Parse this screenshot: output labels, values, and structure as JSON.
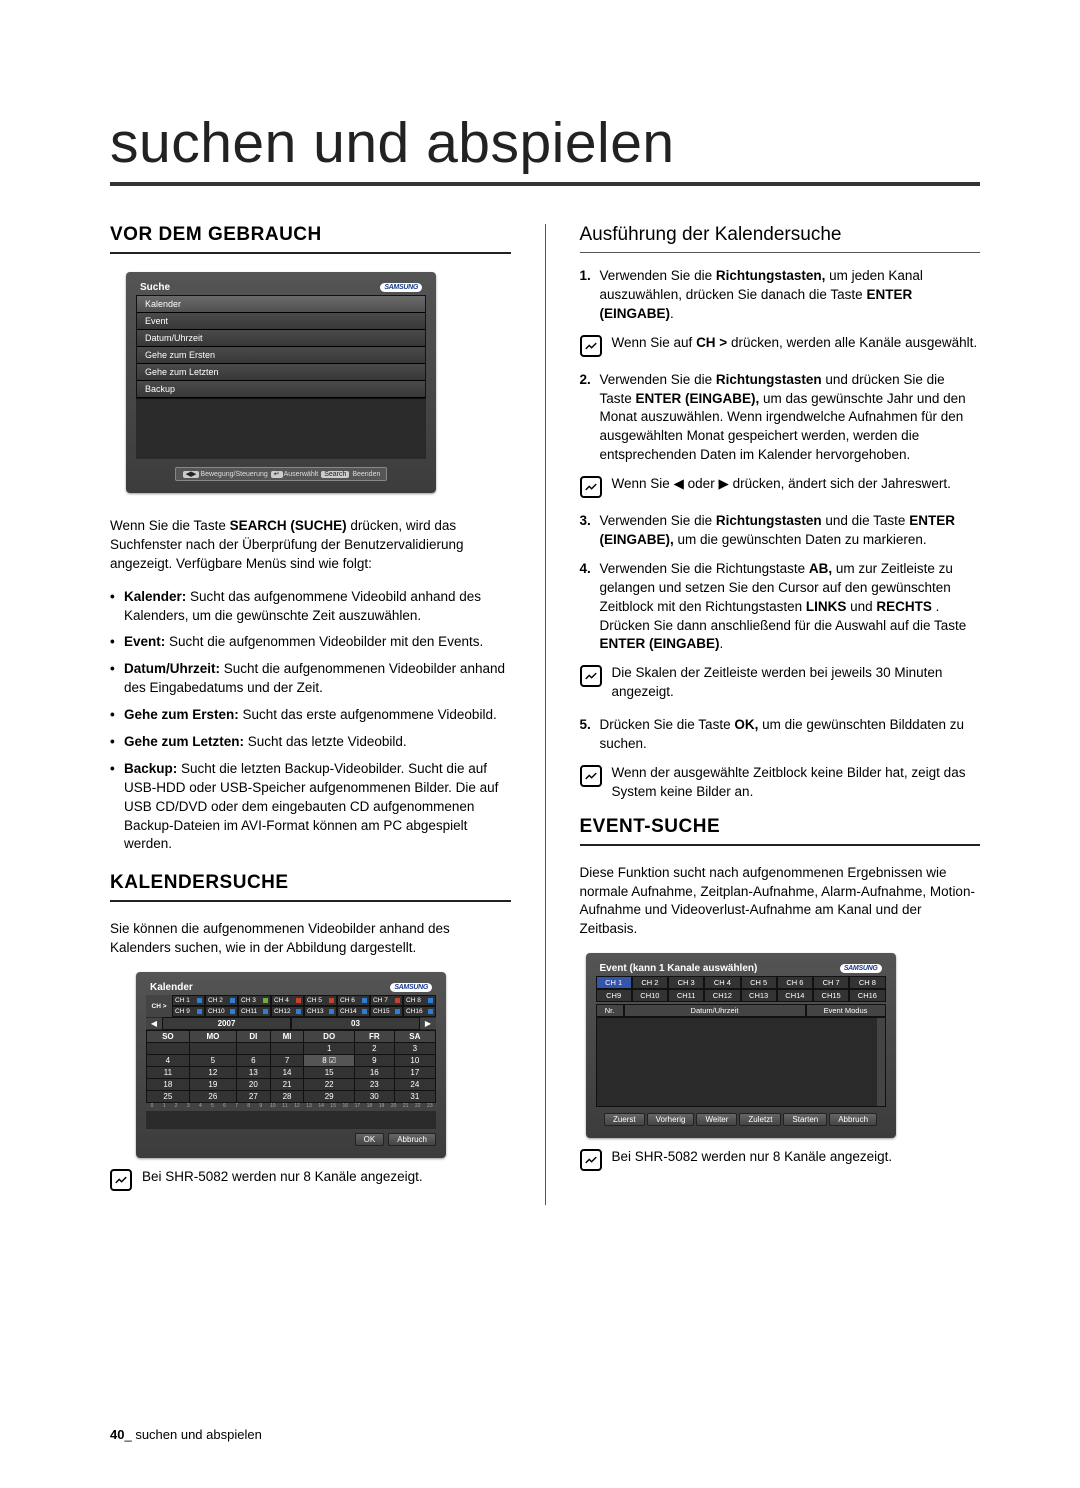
{
  "page": {
    "title": "suchen und abspielen",
    "footer_page": "40",
    "footer_text": "suchen und abspielen"
  },
  "colors": {
    "text": "#000000",
    "rule": "#333333",
    "mock_bg_top": "#545454",
    "mock_bg_bottom": "#3c3c3c",
    "samsung_blue": "#1a3b8b",
    "highlight_cell": "#555555"
  },
  "left": {
    "h1": "VOR DEM GEBRAUCH",
    "mock_menu": {
      "title": "Suche",
      "brand": "SAMSUNG",
      "items": [
        "Kalender",
        "Event",
        "Datum/Uhrzeit",
        "Gehe zum Ersten",
        "Gehe zum Letzten",
        "Backup"
      ],
      "footer": [
        "Bewegung/Steuerung",
        "Auserwählt",
        "Search",
        "Beenden"
      ]
    },
    "intro": "Wenn Sie die Taste SEARCH (SUCHE) drücken, wird das Suchfenster nach der Überprüfung der Benutzervalidierung angezeigt. Verfügbare Menüs sind wie folgt:",
    "bullets": [
      {
        "b": "Kalender:",
        "t": " Sucht das aufgenommene Videobild anhand des Kalenders, um die gewünschte Zeit auszuwählen."
      },
      {
        "b": "Event:",
        "t": " Sucht die aufgenommen Videobilder mit den Events."
      },
      {
        "b": "Datum/Uhrzeit:",
        "t": " Sucht die aufgenommenen Videobilder anhand des Eingabedatums und der Zeit."
      },
      {
        "b": "Gehe zum Ersten:",
        "t": " Sucht das erste aufgenommene Videobild."
      },
      {
        "b": "Gehe zum Letzten:",
        "t": " Sucht das letzte Videobild."
      },
      {
        "b": "Backup:",
        "t": " Sucht die letzten Backup-Videobilder. Sucht die auf USB-HDD oder USB-Speicher aufgenommenen Bilder. Die auf USB CD/DVD oder dem eingebauten CD aufgenommenen Backup-Dateien im AVI-Format können am PC abgespielt werden."
      }
    ],
    "h2": "KALENDERSUCHE",
    "h2_intro": "Sie können die aufgenommenen Videobilder anhand des Kalenders suchen, wie in der Abbildung dargestellt.",
    "calendar_mock": {
      "title": "Kalender",
      "brand": "SAMSUNG",
      "ch_label": "CH >",
      "channels_row1": [
        "CH 1",
        "CH 2",
        "CH 3",
        "CH 4",
        "CH 5",
        "CH 6",
        "CH 7",
        "CH 8"
      ],
      "channels_row2": [
        "CH 9",
        "CH10",
        "CH11",
        "CH12",
        "CH13",
        "CH14",
        "CH15",
        "CH16"
      ],
      "channel_colors": [
        "#2e7dd6",
        "#2e7dd6",
        "#6fae3b",
        "#c7412a",
        "#c7412a",
        "#2e7dd6",
        "#c7412a",
        "#2e7dd6",
        "#2e7dd6",
        "#2e7dd6",
        "#2e7dd6",
        "#2e7dd6",
        "#2e7dd6",
        "#2e7dd6",
        "#2e7dd6",
        "#2e7dd6"
      ],
      "year": "2007",
      "month": "03",
      "weekdays": [
        "SO",
        "MO",
        "DI",
        "MI",
        "DO",
        "FR",
        "SA"
      ],
      "grid": [
        [
          "",
          "",
          "",
          "",
          "1",
          "2",
          "3"
        ],
        [
          "4",
          "5",
          "6",
          "7",
          "8",
          "9",
          "10"
        ],
        [
          "11",
          "12",
          "13",
          "14",
          "15",
          "16",
          "17"
        ],
        [
          "18",
          "19",
          "20",
          "21",
          "22",
          "23",
          "24"
        ],
        [
          "25",
          "26",
          "27",
          "28",
          "29",
          "30",
          "31"
        ]
      ],
      "highlighted_day": "8",
      "timeline_ticks": [
        "0",
        "1",
        "2",
        "3",
        "4",
        "5",
        "6",
        "7",
        "8",
        "9",
        "10",
        "11",
        "12",
        "13",
        "14",
        "15",
        "16",
        "17",
        "18",
        "19",
        "20",
        "21",
        "22",
        "23"
      ],
      "buttons": [
        "OK",
        "Abbruch"
      ]
    },
    "note8": "Bei SHR-5082 werden nur 8 Kanäle angezeigt."
  },
  "right": {
    "sub1": "Ausführung der Kalendersuche",
    "steps": [
      {
        "n": "1.",
        "t": "Verwenden Sie die Richtungstasten, um jeden Kanal auszuwählen, drücken Sie danach die Taste ENTER (EINGABE)."
      },
      {
        "n": "2.",
        "t": "Verwenden Sie die Richtungstasten und drücken Sie die Taste ENTER (EINGABE), um das gewünschte Jahr und den Monat auszuwählen. Wenn irgendwelche Aufnahmen für den ausgewählten Monat gespeichert werden, werden die entsprechenden Daten im Kalender hervorgehoben."
      },
      {
        "n": "3.",
        "t": "Verwenden Sie die Richtungstasten und die Taste ENTER (EINGABE), um die gewünschten Daten zu markieren."
      },
      {
        "n": "4.",
        "t": "Verwenden Sie die Richtungstaste AB, um zur Zeitleiste zu gelangen und setzen Sie den Cursor auf den gewünschten Zeitblock mit den Richtungstasten LINKS und RECHTS . Drücken Sie dann anschließend für die Auswahl auf die Taste ENTER (EINGABE)."
      },
      {
        "n": "5.",
        "t": "Drücken Sie die Taste OK, um die gewünschten Bilddaten zu suchen."
      }
    ],
    "note_ch": "Wenn Sie auf CH > drücken, werden alle Kanäle ausgewählt.",
    "note_year": "Wenn Sie ◀ oder ▶ drücken, ändert sich der Jahreswert.",
    "note_scale": "Die Skalen der Zeitleiste werden bei jeweils 30 Minuten angezeigt.",
    "note_noimg": "Wenn der ausgewählte Zeitblock keine Bilder hat, zeigt das System keine Bilder an.",
    "h2": "EVENT-SUCHE",
    "h2_intro": "Diese Funktion sucht nach aufgenommenen Ergebnissen wie normale Aufnahme, Zeitplan-Aufnahme, Alarm-Aufnahme, Motion-Aufnahme und Videoverlust-Aufnahme am Kanal und der Zeitbasis.",
    "event_mock": {
      "title": "Event (kann 1 Kanale auswählen)",
      "brand": "SAMSUNG",
      "channels_row1": [
        "CH 1",
        "CH 2",
        "CH 3",
        "CH 4",
        "CH 5",
        "CH 6",
        "CH 7",
        "CH 8"
      ],
      "channels_row2": [
        "CH9",
        "CH10",
        "CH11",
        "CH12",
        "CH13",
        "CH14",
        "CH15",
        "CH16"
      ],
      "headers": [
        "Nr.",
        "Datum/Uhrzeit",
        "Event Modus"
      ],
      "buttons": [
        "Zuerst",
        "Vorherig",
        "Weiter",
        "Zuletzt",
        "Starten",
        "Abbruch"
      ]
    },
    "note8": "Bei SHR-5082 werden nur 8 Kanäle angezeigt."
  }
}
